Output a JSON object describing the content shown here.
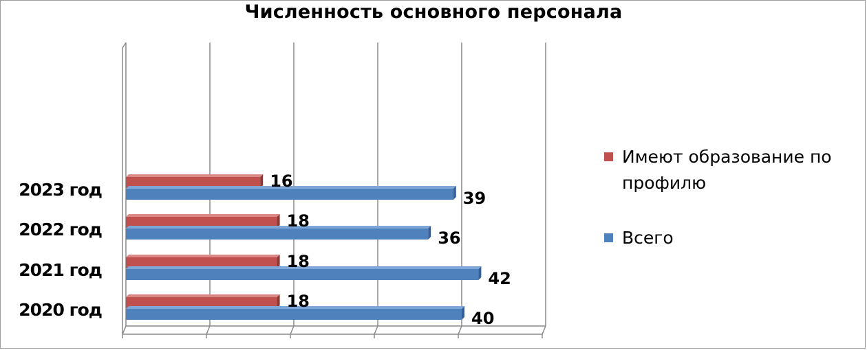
{
  "chart_data": {
    "type": "bar",
    "orientation": "horizontal",
    "style": "3d",
    "title": "Численность основного персонала",
    "categories": [
      "2020 год",
      "2021 год",
      "2022 год",
      "2023 год"
    ],
    "series": [
      {
        "name": "Всего",
        "values": [
          40,
          42,
          36,
          39
        ],
        "color": "#4f81bd",
        "shade": "#355f97",
        "top": "#7ea6d6"
      },
      {
        "name": "Имеют образование по профилю",
        "values": [
          18,
          18,
          18,
          16
        ],
        "color": "#c0504d",
        "shade": "#8f3634",
        "top": "#d98886"
      }
    ],
    "xlim": [
      0,
      50
    ],
    "grid": true,
    "legend_position": "right",
    "data_labels": true
  },
  "legend": {
    "items": [
      {
        "label": " Имеют образование по профилю",
        "color": "#c0504d"
      },
      {
        "label": "Всего",
        "color": "#4f81bd"
      }
    ]
  }
}
